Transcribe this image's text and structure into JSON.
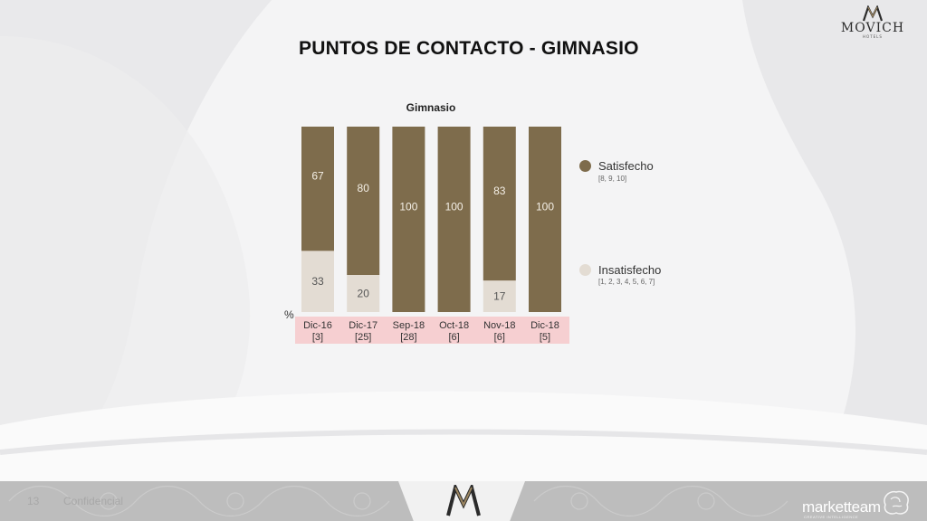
{
  "header": {
    "title": "PUNTOS DE CONTACTO - GIMNASIO",
    "logo_text": "MOVICH",
    "logo_subtext": "HOTELS"
  },
  "chart_data": {
    "type": "bar",
    "stacked": true,
    "title": "Gimnasio",
    "unit_label": "%",
    "categories": [
      "Dic-16",
      "Dic-17",
      "Sep-18",
      "Oct-18",
      "Nov-18",
      "Dic-18"
    ],
    "sample_sizes": [
      "[3]",
      "[25]",
      "[28]",
      "[6]",
      "[6]",
      "[5]"
    ],
    "ylim": [
      0,
      100
    ],
    "series": [
      {
        "name": "Insatisfecho",
        "scale": "[1, 2, 3, 4, 5, 6, 7]",
        "color": "#e3dcd3",
        "values": [
          33,
          20,
          0,
          0,
          17,
          0
        ]
      },
      {
        "name": "Satisfecho",
        "scale": "[8, 9, 10]",
        "color": "#7e6c4c",
        "values": [
          67,
          80,
          100,
          100,
          83,
          100
        ]
      }
    ],
    "category_band_color": "#f6cfd1",
    "grid": false,
    "legend_position": "right"
  },
  "footer": {
    "page_number": "13",
    "note": "Confidencial",
    "partner": "marketteam",
    "partner_tagline": "CREATIVE INTELLIGENCE"
  },
  "colors": {
    "background": "#f4f4f5",
    "footer": "#bdbdbd",
    "accent": "#7e6c4c"
  }
}
